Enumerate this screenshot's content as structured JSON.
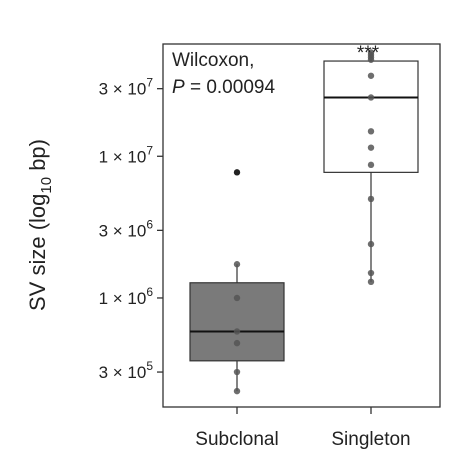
{
  "chart_data": {
    "type": "box",
    "ylabel": {
      "prefix": "SV size (log",
      "sub": "10",
      "suffix": " bp)"
    },
    "y_scale": "log",
    "ylim": [
      170000,
      62000000
    ],
    "yticks": [
      {
        "value": 300000,
        "mantissa": "3 × 10",
        "exp": "5"
      },
      {
        "value": 1000000,
        "mantissa": "1 × 10",
        "exp": "6"
      },
      {
        "value": 3000000,
        "mantissa": "3 × 10",
        "exp": "6"
      },
      {
        "value": 10000000,
        "mantissa": "1 × 10",
        "exp": "7"
      },
      {
        "value": 30000000,
        "mantissa": "3 × 10",
        "exp": "7"
      }
    ],
    "categories": [
      "Subclonal",
      "Singleton"
    ],
    "boxes": [
      {
        "name": "Subclonal",
        "fill": "#7a7a7a",
        "whisker_low": 220000,
        "q1": 360000,
        "median": 580000,
        "q3": 1280000,
        "whisker_high": 1730000,
        "outliers": [
          7700000
        ],
        "points": [
          220000,
          300000,
          480000,
          580000,
          1000000,
          1730000
        ]
      },
      {
        "name": "Singleton",
        "fill": "#ffffff",
        "whisker_low": 1300000,
        "q1": 7700000,
        "median": 26000000,
        "q3": 47000000,
        "whisker_high": 54000000,
        "outliers": [],
        "points": [
          1300000,
          1500000,
          2400000,
          5000000,
          8700000,
          11500000,
          15000000,
          26000000,
          37000000,
          48000000,
          50000000,
          52000000,
          54000000
        ]
      }
    ],
    "annotation": {
      "line1": "Wilcoxon,",
      "p_label": "P",
      "p_value": " = 0.00094"
    },
    "significance": "***",
    "grid": false,
    "colors": {
      "axis": "#333333",
      "point": "#555555",
      "outlier": "#222222",
      "median": "#111111"
    }
  }
}
